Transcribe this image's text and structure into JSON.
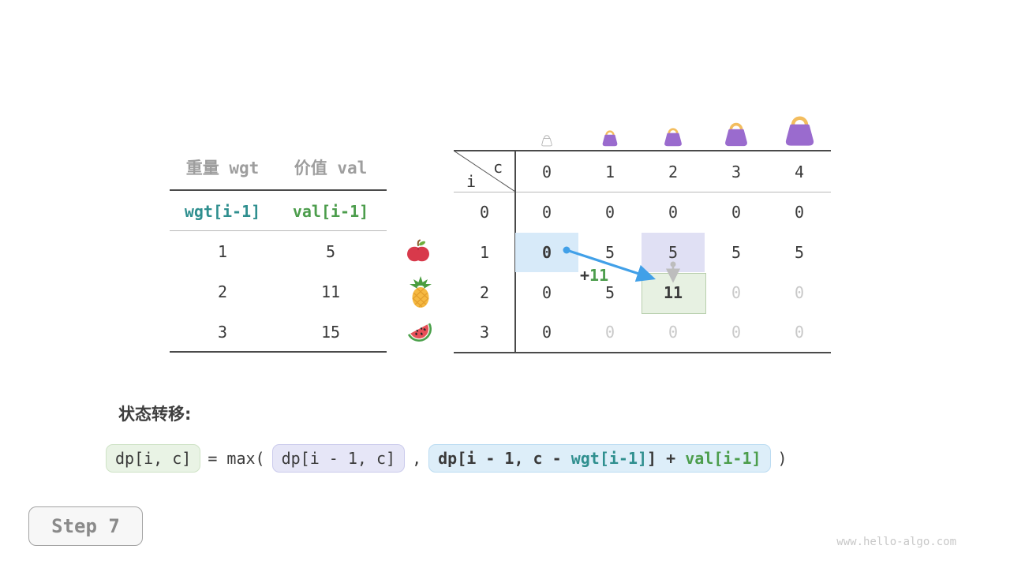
{
  "colors": {
    "teal": "#2f8f8f",
    "green": "#4c9d4c",
    "arrow_blue": "#41a0e8",
    "highlight_blue": "#d7eaf9",
    "highlight_lavender": "#e0e0f4",
    "highlight_green": "#e7f1e2",
    "highlight_green_border": "#b8cfad",
    "bag_purple": "#9a6bce",
    "bag_handle": "#f3bd5e"
  },
  "items_table": {
    "headers": [
      "重量 wgt",
      "价值 val"
    ],
    "array_row": {
      "wgt": "wgt[i-1]",
      "val": "val[i-1]"
    },
    "rows": [
      {
        "wgt": "1",
        "val": "5",
        "fruit": "apple"
      },
      {
        "wgt": "2",
        "val": "11",
        "fruit": "pineapple"
      },
      {
        "wgt": "3",
        "val": "15",
        "fruit": "watermelon"
      }
    ]
  },
  "dp_table": {
    "corner": {
      "row_var": "i",
      "col_var": "c"
    },
    "col_headers": [
      "0",
      "1",
      "2",
      "3",
      "4"
    ],
    "bags": [
      {
        "name": "bag-empty-icon",
        "style": "empty",
        "size": 18
      },
      {
        "name": "bag-icon",
        "style": "purple",
        "size": 24
      },
      {
        "name": "bag-icon",
        "style": "purple",
        "size": 28
      },
      {
        "name": "bag-icon",
        "style": "purple",
        "size": 36
      },
      {
        "name": "bag-icon",
        "style": "purple",
        "size": 45
      }
    ],
    "rows": [
      {
        "label": "0",
        "cells": [
          {
            "v": "0"
          },
          {
            "v": "0"
          },
          {
            "v": "0"
          },
          {
            "v": "0"
          },
          {
            "v": "0"
          }
        ]
      },
      {
        "label": "1",
        "cells": [
          {
            "v": "0",
            "bold": true,
            "hl": "blue"
          },
          {
            "v": "5"
          },
          {
            "v": "5",
            "hl": "lavender"
          },
          {
            "v": "5"
          },
          {
            "v": "5"
          }
        ]
      },
      {
        "label": "2",
        "cells": [
          {
            "v": "0"
          },
          {
            "v": "5"
          },
          {
            "v": "11",
            "bold": true,
            "hl": "green"
          },
          {
            "v": "0",
            "gray": true
          },
          {
            "v": "0",
            "gray": true
          }
        ]
      },
      {
        "label": "3",
        "cells": [
          {
            "v": "0"
          },
          {
            "v": "0",
            "gray": true
          },
          {
            "v": "0",
            "gray": true
          },
          {
            "v": "0",
            "gray": true
          },
          {
            "v": "0",
            "gray": true
          }
        ]
      }
    ],
    "transition_label": {
      "plus": "+",
      "value": "11"
    }
  },
  "formula": {
    "label": "状态转移:",
    "lhs": "dp[i, c]",
    "equals_max": "= max(",
    "option1": "dp[i - 1, c]",
    "comma": ",",
    "option2_segments": [
      {
        "text": "dp[i - 1, c - ",
        "color": "dark"
      },
      {
        "text": "wgt[i-1]",
        "color": "teal"
      },
      {
        "text": "] + ",
        "color": "dark"
      },
      {
        "text": "val[i-1]",
        "color": "green"
      }
    ],
    "close": ")"
  },
  "step_badge": {
    "label": "Step 7"
  },
  "watermark": "www.hello-algo.com"
}
